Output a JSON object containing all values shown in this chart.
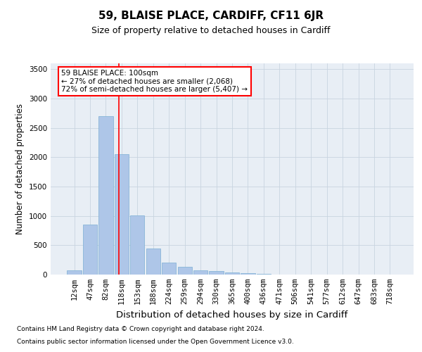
{
  "title": "59, BLAISE PLACE, CARDIFF, CF11 6JR",
  "subtitle": "Size of property relative to detached houses in Cardiff",
  "xlabel": "Distribution of detached houses by size in Cardiff",
  "ylabel": "Number of detached properties",
  "footnote1": "Contains HM Land Registry data © Crown copyright and database right 2024.",
  "footnote2": "Contains public sector information licensed under the Open Government Licence v3.0.",
  "annotation_line1": "59 BLAISE PLACE: 100sqm",
  "annotation_line2": "← 27% of detached houses are smaller (2,068)",
  "annotation_line3": "72% of semi-detached houses are larger (5,407) →",
  "categories": [
    "12sqm",
    "47sqm",
    "82sqm",
    "118sqm",
    "153sqm",
    "188sqm",
    "224sqm",
    "259sqm",
    "294sqm",
    "330sqm",
    "365sqm",
    "400sqm",
    "436sqm",
    "471sqm",
    "506sqm",
    "541sqm",
    "577sqm",
    "612sqm",
    "647sqm",
    "683sqm",
    "718sqm"
  ],
  "values": [
    75,
    850,
    2700,
    2050,
    1010,
    450,
    210,
    130,
    75,
    55,
    40,
    20,
    10,
    5,
    2,
    1,
    1,
    0,
    0,
    0,
    0
  ],
  "bar_color": "#aec6e8",
  "bar_edge_color": "#7bafd4",
  "redline_x": 2.82,
  "ylim": [
    0,
    3600
  ],
  "yticks": [
    0,
    500,
    1000,
    1500,
    2000,
    2500,
    3000,
    3500
  ],
  "grid_color": "#c8d4e0",
  "bg_color": "#e8eef5",
  "title_fontsize": 11,
  "subtitle_fontsize": 9,
  "axis_label_fontsize": 8.5,
  "tick_fontsize": 7.5,
  "footnote_fontsize": 6.5,
  "annotation_fontsize": 7.5
}
